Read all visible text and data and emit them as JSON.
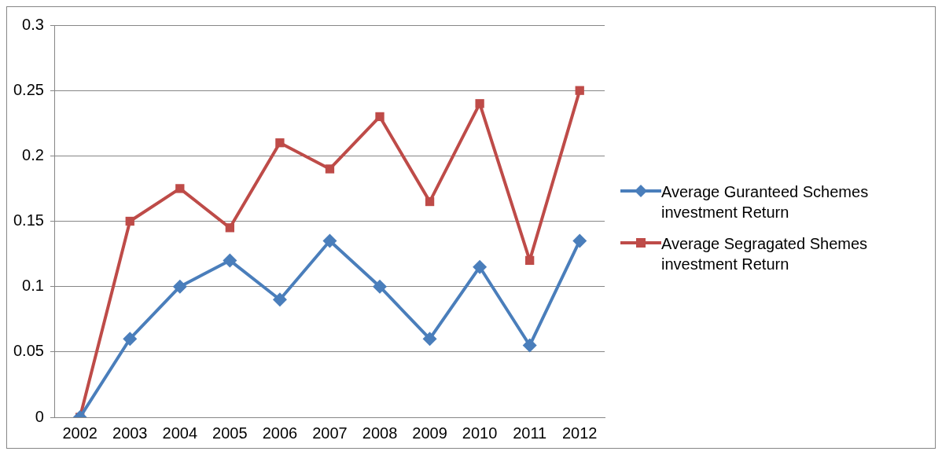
{
  "chart_data": {
    "type": "line",
    "categories": [
      "2002",
      "2003",
      "2004",
      "2005",
      "2006",
      "2007",
      "2008",
      "2009",
      "2010",
      "2011",
      "2012"
    ],
    "series": [
      {
        "name": "Average Guranteed Schemes investment Return",
        "color": "#4a7ebb",
        "marker": "diamond",
        "values": [
          0,
          0.06,
          0.1,
          0.12,
          0.09,
          0.135,
          0.1,
          0.06,
          0.115,
          0.055,
          0.135
        ]
      },
      {
        "name": "Average Segragated Shemes investment Return",
        "color": "#be4b48",
        "marker": "square",
        "values": [
          0,
          0.15,
          0.175,
          0.145,
          0.21,
          0.19,
          0.23,
          0.165,
          0.24,
          0.12,
          0.25
        ]
      }
    ],
    "ylim": [
      0,
      0.3
    ],
    "yticks": [
      0,
      0.05,
      0.1,
      0.15,
      0.2,
      0.25,
      0.3
    ],
    "grid": "y",
    "legend": "right",
    "line_style": "solid"
  }
}
